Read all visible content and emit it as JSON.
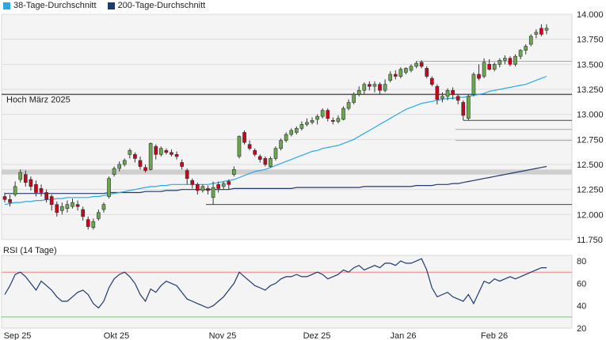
{
  "legend": {
    "ma38": {
      "label": "38-Tage-Durchschnitt",
      "color": "#29abe2"
    },
    "ma200": {
      "label": "200-Tage-Durchschnitt",
      "color": "#1f3a6e"
    }
  },
  "chart_data": [
    {
      "type": "candlestick",
      "title": "",
      "ylim": [
        11.75,
        14.0
      ],
      "yticks": [
        "11.750",
        "12.000",
        "12.250",
        "12.500",
        "12.750",
        "13.000",
        "13.250",
        "13.500",
        "13.750",
        "14.000"
      ],
      "up_color": "#6aa84f",
      "down_color": "#d0021b",
      "annotation": "Hoch März 2025",
      "horizontal_levels": [
        {
          "value": 13.2,
          "label": "Hoch März 2025"
        },
        {
          "value": 12.1
        },
        {
          "value": 12.94
        },
        {
          "value": 13.53
        },
        {
          "value": 12.85
        },
        {
          "value": 12.74
        }
      ],
      "resistance_band": {
        "from": 12.4,
        "to": 12.45
      },
      "candles": [
        [
          12.18,
          12.15,
          12.22,
          12.12
        ],
        [
          12.15,
          12.12,
          12.2,
          12.08
        ],
        [
          12.2,
          12.28,
          12.33,
          12.18
        ],
        [
          12.35,
          12.42,
          12.45,
          12.32
        ],
        [
          12.4,
          12.32,
          12.44,
          12.28
        ],
        [
          12.35,
          12.28,
          12.38,
          12.24
        ],
        [
          12.3,
          12.22,
          12.34,
          12.18
        ],
        [
          12.26,
          12.22,
          12.3,
          12.18
        ],
        [
          12.22,
          12.15,
          12.25,
          12.12
        ],
        [
          12.18,
          12.1,
          12.2,
          12.04
        ],
        [
          12.1,
          12.02,
          12.13,
          11.98
        ],
        [
          12.04,
          12.08,
          12.12,
          12.0
        ],
        [
          12.06,
          12.1,
          12.14,
          12.02
        ],
        [
          12.08,
          12.12,
          12.16,
          12.06
        ],
        [
          12.1,
          12.08,
          12.14,
          12.04
        ],
        [
          12.05,
          11.98,
          12.08,
          11.94
        ],
        [
          11.95,
          11.88,
          11.98,
          11.85
        ],
        [
          11.87,
          11.93,
          11.96,
          11.85
        ],
        [
          11.96,
          12.02,
          12.05,
          11.94
        ],
        [
          12.05,
          12.1,
          12.12,
          12.02
        ],
        [
          12.18,
          12.36,
          12.38,
          12.16
        ],
        [
          12.4,
          12.46,
          12.48,
          12.38
        ],
        [
          12.46,
          12.5,
          12.53,
          12.43
        ],
        [
          12.5,
          12.54,
          12.56,
          12.48
        ],
        [
          12.6,
          12.64,
          12.66,
          12.56
        ],
        [
          12.6,
          12.56,
          12.62,
          12.52
        ],
        [
          12.54,
          12.48,
          12.58,
          12.45
        ],
        [
          12.47,
          12.44,
          12.5,
          12.42
        ],
        [
          12.45,
          12.71,
          12.72,
          12.44
        ],
        [
          12.68,
          12.6,
          12.7,
          12.55
        ],
        [
          12.6,
          12.66,
          12.68,
          12.58
        ],
        [
          12.64,
          12.62,
          12.66,
          12.6
        ],
        [
          12.62,
          12.6,
          12.65,
          12.58
        ],
        [
          12.6,
          12.58,
          12.63,
          12.55
        ],
        [
          12.52,
          12.48,
          12.55,
          12.45
        ],
        [
          12.44,
          12.36,
          12.46,
          12.3
        ],
        [
          12.34,
          12.3,
          12.36,
          12.26
        ],
        [
          12.3,
          12.24,
          12.32,
          12.2
        ],
        [
          12.24,
          12.28,
          12.3,
          12.22
        ],
        [
          12.26,
          12.24,
          12.29,
          12.2
        ],
        [
          12.17,
          12.27,
          12.33,
          12.1
        ],
        [
          12.3,
          12.26,
          12.33,
          12.22
        ],
        [
          12.28,
          12.31,
          12.33,
          12.25
        ],
        [
          12.33,
          12.3,
          12.35,
          12.25
        ],
        [
          12.4,
          12.45,
          12.48,
          12.38
        ],
        [
          12.58,
          12.78,
          12.79,
          12.56
        ],
        [
          12.82,
          12.72,
          12.84,
          12.7
        ],
        [
          12.7,
          12.66,
          12.74,
          12.64
        ],
        [
          12.64,
          12.6,
          12.66,
          12.58
        ],
        [
          12.58,
          12.55,
          12.6,
          12.52
        ],
        [
          12.56,
          12.5,
          12.58,
          12.48
        ],
        [
          12.48,
          12.56,
          12.58,
          12.47
        ],
        [
          12.56,
          12.66,
          12.68,
          12.54
        ],
        [
          12.66,
          12.74,
          12.76,
          12.64
        ],
        [
          12.74,
          12.8,
          12.82,
          12.72
        ],
        [
          12.8,
          12.84,
          12.86,
          12.78
        ],
        [
          12.82,
          12.86,
          12.88,
          12.8
        ],
        [
          12.86,
          12.9,
          12.93,
          12.84
        ],
        [
          12.9,
          12.92,
          12.96,
          12.88
        ],
        [
          12.92,
          12.94,
          12.97,
          12.9
        ],
        [
          12.95,
          12.98,
          13.0,
          12.9
        ],
        [
          12.98,
          13.04,
          13.06,
          12.96
        ],
        [
          13.04,
          12.96,
          13.06,
          12.93
        ],
        [
          12.94,
          12.93,
          12.97,
          12.9
        ],
        [
          12.93,
          12.96,
          12.99,
          12.91
        ],
        [
          12.95,
          13.06,
          13.08,
          12.94
        ],
        [
          13.06,
          13.12,
          13.15,
          13.04
        ],
        [
          13.12,
          13.2,
          13.22,
          13.1
        ],
        [
          13.2,
          13.24,
          13.28,
          13.18
        ],
        [
          13.24,
          13.3,
          13.32,
          13.2
        ],
        [
          13.3,
          13.28,
          13.33,
          13.24
        ],
        [
          13.28,
          13.3,
          13.33,
          13.22
        ],
        [
          13.3,
          13.24,
          13.32,
          13.2
        ],
        [
          13.24,
          13.3,
          13.35,
          13.22
        ],
        [
          13.34,
          13.4,
          13.43,
          13.32
        ],
        [
          13.4,
          13.38,
          13.44,
          13.35
        ],
        [
          13.38,
          13.45,
          13.47,
          13.36
        ],
        [
          13.42,
          13.46,
          13.47,
          13.4
        ],
        [
          13.44,
          13.48,
          13.5,
          13.42
        ],
        [
          13.48,
          13.51,
          13.53,
          13.46
        ],
        [
          13.52,
          13.48,
          13.54,
          13.46
        ],
        [
          13.46,
          13.38,
          13.48,
          13.36
        ],
        [
          13.36,
          13.3,
          13.38,
          13.28
        ],
        [
          13.28,
          13.15,
          13.3,
          13.1
        ],
        [
          13.16,
          13.18,
          13.22,
          13.12
        ],
        [
          13.18,
          13.24,
          13.26,
          13.14
        ],
        [
          13.24,
          13.2,
          13.27,
          13.15
        ],
        [
          13.18,
          13.14,
          13.2,
          13.1
        ],
        [
          13.12,
          12.99,
          13.14,
          12.94
        ],
        [
          12.96,
          13.18,
          13.2,
          12.94
        ],
        [
          13.2,
          13.4,
          13.42,
          13.18
        ],
        [
          13.4,
          13.36,
          13.5,
          13.34
        ],
        [
          13.38,
          13.52,
          13.56,
          13.36
        ],
        [
          13.5,
          13.45,
          13.55,
          13.44
        ],
        [
          13.45,
          13.5,
          13.52,
          13.43
        ],
        [
          13.5,
          13.54,
          13.56,
          13.47
        ],
        [
          13.54,
          13.56,
          13.59,
          13.5
        ],
        [
          13.56,
          13.5,
          13.58,
          13.48
        ],
        [
          13.5,
          13.58,
          13.6,
          13.48
        ],
        [
          13.58,
          13.64,
          13.65,
          13.55
        ],
        [
          13.64,
          13.68,
          13.7,
          13.6
        ],
        [
          13.7,
          13.78,
          13.8,
          13.68
        ],
        [
          13.8,
          13.82,
          13.85,
          13.76
        ],
        [
          13.86,
          13.8,
          13.9,
          13.78
        ],
        [
          13.84,
          13.86,
          13.9,
          13.8
        ]
      ],
      "ma38": [
        12.1,
        12.11,
        12.12,
        12.12,
        12.13,
        12.13,
        12.14,
        12.14,
        12.15,
        12.15,
        12.16,
        12.16,
        12.17,
        12.17,
        12.17,
        12.17,
        12.17,
        12.18,
        12.18,
        12.19,
        12.2,
        12.21,
        12.22,
        12.23,
        12.24,
        12.25,
        12.26,
        12.27,
        12.28,
        12.28,
        12.29,
        12.29,
        12.3,
        12.3,
        12.3,
        12.3,
        12.3,
        12.3,
        12.3,
        12.3,
        12.31,
        12.32,
        12.33,
        12.34,
        12.35,
        12.37,
        12.39,
        12.41,
        12.43,
        12.44,
        12.45,
        12.47,
        12.49,
        12.51,
        12.53,
        12.55,
        12.57,
        12.59,
        12.61,
        12.63,
        12.64,
        12.66,
        12.67,
        12.68,
        12.69,
        12.71,
        12.73,
        12.75,
        12.78,
        12.81,
        12.84,
        12.87,
        12.9,
        12.93,
        12.96,
        12.99,
        13.02,
        13.05,
        13.07,
        13.09,
        13.11,
        13.12,
        13.13,
        13.14,
        13.15,
        13.16,
        13.16,
        13.17,
        13.17,
        13.18,
        13.19,
        13.2,
        13.21,
        13.23,
        13.24,
        13.25,
        13.26,
        13.27,
        13.28,
        13.29,
        13.3,
        13.32,
        13.34,
        13.36,
        13.38
      ],
      "ma200": [
        12.21,
        12.21,
        12.21,
        12.21,
        12.21,
        12.21,
        12.21,
        12.21,
        12.21,
        12.21,
        12.21,
        12.21,
        12.21,
        12.21,
        12.21,
        12.21,
        12.21,
        12.21,
        12.21,
        12.21,
        12.22,
        12.22,
        12.22,
        12.22,
        12.22,
        12.22,
        12.22,
        12.23,
        12.23,
        12.23,
        12.23,
        12.24,
        12.24,
        12.24,
        12.25,
        12.25,
        12.25,
        12.25,
        12.25,
        12.25,
        12.25,
        12.25,
        12.25,
        12.25,
        12.26,
        12.26,
        12.26,
        12.26,
        12.26,
        12.26,
        12.26,
        12.26,
        12.26,
        12.26,
        12.26,
        12.26,
        12.27,
        12.27,
        12.27,
        12.27,
        12.27,
        12.27,
        12.27,
        12.27,
        12.27,
        12.27,
        12.27,
        12.27,
        12.27,
        12.28,
        12.28,
        12.28,
        12.28,
        12.28,
        12.28,
        12.28,
        12.28,
        12.28,
        12.28,
        12.29,
        12.29,
        12.29,
        12.29,
        12.3,
        12.3,
        12.3,
        12.31,
        12.31,
        12.32,
        12.33,
        12.34,
        12.35,
        12.36,
        12.37,
        12.38,
        12.39,
        12.4,
        12.41,
        12.42,
        12.43,
        12.44,
        12.45,
        12.46,
        12.47,
        12.48
      ]
    },
    {
      "type": "line",
      "title": "RSI (14 Tage)",
      "ylim": [
        20,
        85
      ],
      "yticks": [
        "20",
        "40",
        "60",
        "80"
      ],
      "levels": [
        {
          "value": 70,
          "color": "#f08080"
        },
        {
          "value": 30,
          "color": "#7bc47b"
        }
      ],
      "values": [
        50,
        58,
        68,
        70,
        66,
        60,
        54,
        62,
        58,
        54,
        48,
        44,
        44,
        48,
        52,
        54,
        50,
        42,
        38,
        44,
        56,
        64,
        68,
        70,
        66,
        60,
        50,
        44,
        55,
        52,
        58,
        62,
        60,
        58,
        52,
        46,
        44,
        42,
        40,
        38,
        40,
        44,
        48,
        54,
        60,
        70,
        66,
        62,
        58,
        56,
        54,
        58,
        60,
        64,
        66,
        66,
        68,
        66,
        66,
        68,
        70,
        68,
        64,
        66,
        68,
        72,
        70,
        74,
        76,
        72,
        74,
        76,
        74,
        78,
        78,
        76,
        80,
        78,
        78,
        80,
        82,
        72,
        56,
        48,
        50,
        52,
        48,
        46,
        44,
        50,
        42,
        52,
        62,
        60,
        64,
        62,
        64,
        66,
        64,
        66,
        68,
        70,
        72,
        74,
        74
      ]
    }
  ],
  "xaxis": {
    "labels": [
      "Sep 25",
      "Okt 25",
      "Nov 25",
      "Dez 25",
      "Jan 26",
      "Feb 26"
    ]
  }
}
